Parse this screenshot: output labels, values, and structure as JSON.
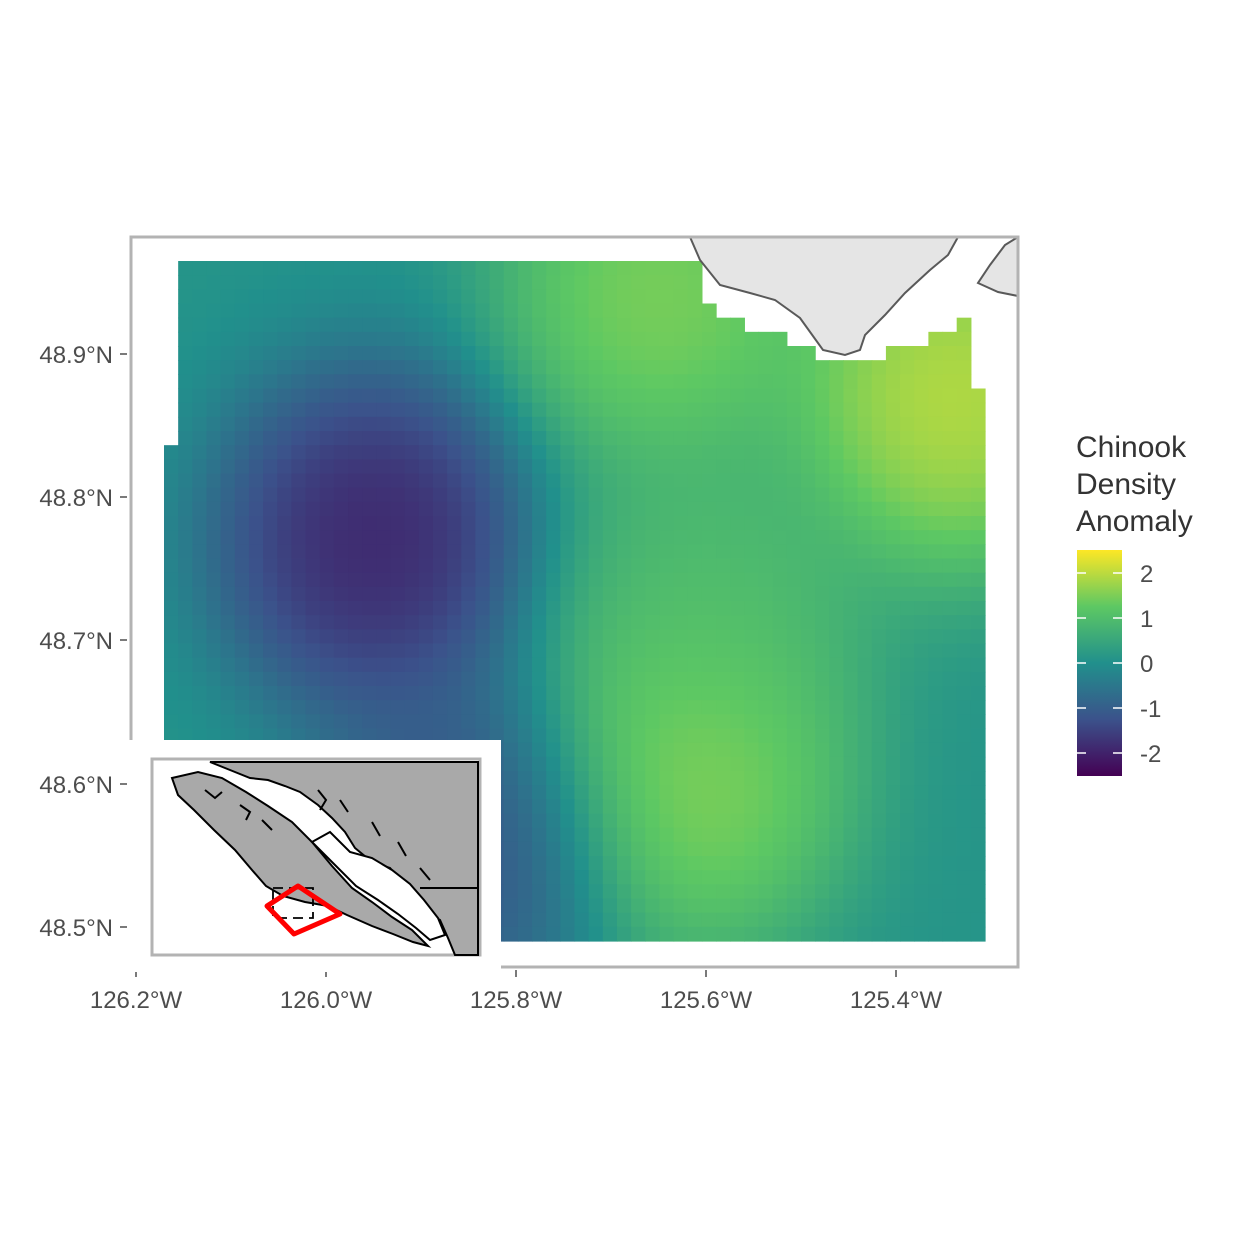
{
  "legend": {
    "title_lines": [
      "Chinook",
      "Density",
      "Anomaly"
    ],
    "breaks": [
      "2",
      "1",
      "0",
      "-1",
      "-2"
    ],
    "range": [
      -2.5,
      2.5
    ],
    "colors": [
      "#440154",
      "#3b528b",
      "#21908c",
      "#5dc863",
      "#fde725"
    ]
  },
  "axes": {
    "x_ticks": [
      "126.2°W",
      "126.0°W",
      "125.8°W",
      "125.6°W",
      "125.4°W"
    ],
    "y_ticks": [
      "48.9°N",
      "48.8°N",
      "48.7°N",
      "48.6°N",
      "48.5°N"
    ]
  },
  "chart_data": {
    "type": "heatmap",
    "x_range_degW": [
      126.3,
      125.25
    ],
    "y_range_degN": [
      48.47,
      48.97
    ],
    "value_range": [
      -2.5,
      2.5
    ],
    "anomaly_centers": [
      {
        "lon": -125.95,
        "lat": 48.77,
        "value": -2.5
      },
      {
        "lon": -125.85,
        "lat": 48.56,
        "value": -1.6
      },
      {
        "lon": -125.62,
        "lat": 48.6,
        "value": 2.0
      },
      {
        "lon": -125.34,
        "lat": 48.87,
        "value": 2.5
      },
      {
        "lon": -125.65,
        "lat": 48.94,
        "value": 1.9
      },
      {
        "lon": -125.6,
        "lat": 48.72,
        "value": 1.2
      }
    ],
    "land_color": "#e5e5e5",
    "inset_highlight_color": "#ff0000"
  }
}
